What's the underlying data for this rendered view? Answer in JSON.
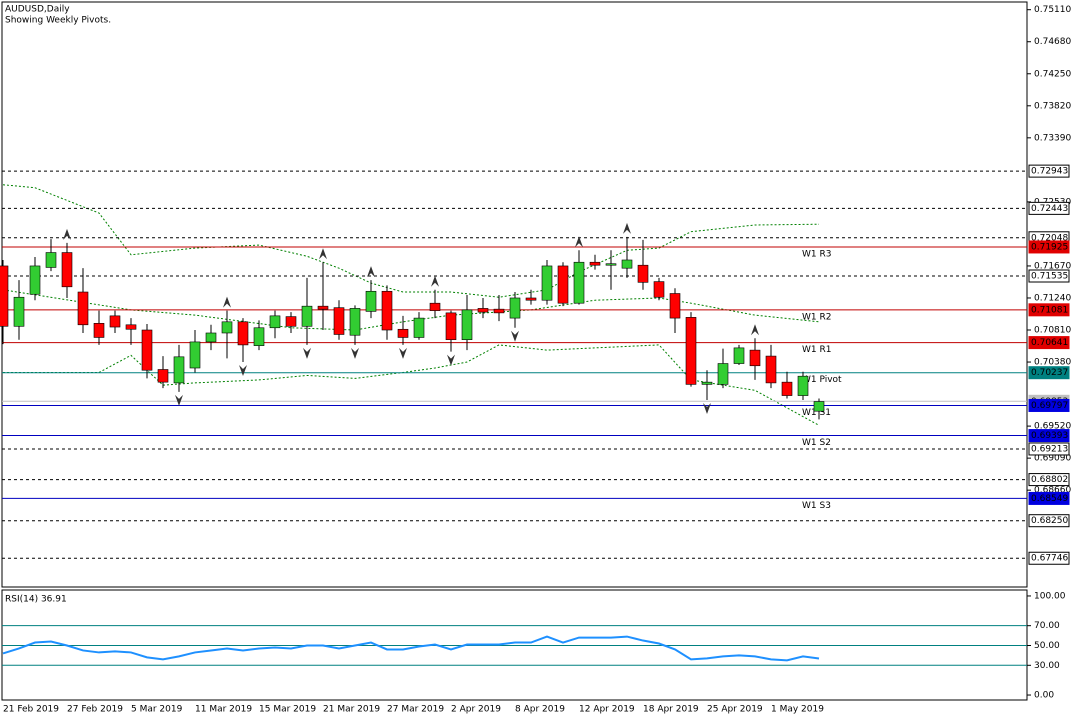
{
  "header": {
    "symbol": "AUDUSD,Daily",
    "note": "Showing Weekly Pivots."
  },
  "chart_data": [
    {
      "type": "candlestick",
      "categories": [
        "21 Feb 2019",
        null,
        null,
        null,
        "27 Feb 2019",
        null,
        null,
        null,
        "5 Mar 2019",
        null,
        null,
        null,
        "11 Mar 2019",
        null,
        null,
        null,
        "15 Mar 2019",
        null,
        null,
        null,
        "21 Mar 2019",
        null,
        null,
        null,
        "27 Mar 2019",
        null,
        null,
        null,
        "2 Apr 2019",
        null,
        null,
        null,
        "8 Apr 2019",
        null,
        null,
        null,
        "12 Apr 2019",
        null,
        null,
        null,
        "18 Apr 2019",
        null,
        null,
        null,
        "25 Apr 2019",
        null,
        null,
        null,
        "1 May 2019",
        null,
        null,
        null
      ],
      "open": [
        0.7167,
        0.7086,
        0.7129,
        0.7165,
        0.7185,
        0.7132,
        0.709,
        0.71,
        0.7088,
        0.7081,
        0.7028,
        0.701,
        0.703,
        0.7065,
        0.7077,
        0.7092,
        0.706,
        0.7084,
        0.7099,
        0.7086,
        0.7113,
        0.7111,
        0.7074,
        0.7106,
        0.7133,
        0.7082,
        0.7071,
        0.7117,
        0.7104,
        0.7068,
        0.711,
        0.7109,
        0.7097,
        0.7124,
        0.7121,
        0.7167,
        0.7117,
        0.7172,
        0.7168,
        0.7164,
        0.7168,
        0.7146,
        0.713,
        0.7098,
        0.7008,
        0.7008,
        0.7036,
        0.7054,
        0.7046,
        0.7011,
        0.6993,
        0.6972
      ],
      "high": [
        0.7175,
        0.7148,
        0.7179,
        0.7203,
        0.7198,
        0.7164,
        0.7107,
        0.7107,
        0.7097,
        0.7089,
        0.7046,
        0.7061,
        0.7081,
        0.7088,
        0.7107,
        0.7097,
        0.7094,
        0.7107,
        0.7105,
        0.7151,
        0.7172,
        0.7121,
        0.7114,
        0.7148,
        0.7141,
        0.71,
        0.7105,
        0.7135,
        0.7107,
        0.7128,
        0.7124,
        0.7128,
        0.7132,
        0.7135,
        0.7175,
        0.7172,
        0.7188,
        0.7182,
        0.7188,
        0.7206,
        0.7202,
        0.7151,
        0.7137,
        0.7105,
        0.7027,
        0.7056,
        0.7061,
        0.707,
        0.7061,
        0.7025,
        0.7025,
        0.6989
      ],
      "low": [
        0.7062,
        0.7068,
        0.7121,
        0.716,
        0.7124,
        0.7077,
        0.7061,
        0.7077,
        0.7061,
        0.7016,
        0.7003,
        0.6998,
        0.7024,
        0.7054,
        0.7043,
        0.7038,
        0.7054,
        0.707,
        0.7077,
        0.7061,
        0.7081,
        0.7068,
        0.7061,
        0.7097,
        0.7068,
        0.7061,
        0.7068,
        0.7097,
        0.7052,
        0.7054,
        0.7097,
        0.7093,
        0.7084,
        0.7115,
        0.7115,
        0.7113,
        0.7115,
        0.7162,
        0.7135,
        0.7151,
        0.7135,
        0.7121,
        0.7077,
        0.7005,
        0.6987,
        0.7003,
        0.7034,
        0.7014,
        0.7003,
        0.6989,
        0.6987,
        0.6961
      ],
      "close": [
        0.7086,
        0.7125,
        0.7167,
        0.7185,
        0.7139,
        0.7088,
        0.7071,
        0.7085,
        0.7082,
        0.7027,
        0.7011,
        0.7045,
        0.7065,
        0.7077,
        0.7092,
        0.7061,
        0.7084,
        0.71,
        0.7086,
        0.7113,
        0.7109,
        0.7075,
        0.711,
        0.7133,
        0.7081,
        0.7071,
        0.7097,
        0.7107,
        0.7068,
        0.7108,
        0.7105,
        0.7104,
        0.7124,
        0.7121,
        0.7167,
        0.7117,
        0.7172,
        0.7168,
        0.717,
        0.7175,
        0.7145,
        0.7125,
        0.7097,
        0.7008,
        0.7011,
        0.7036,
        0.7057,
        0.7033,
        0.701,
        0.6993,
        0.7019,
        0.6985
      ],
      "up_color": "#32cd32",
      "down_color": "#ff0000",
      "ylim": [
        0.6736,
        0.752
      ],
      "yticks": [
        {
          "value": 0.7511,
          "label": "0.75110"
        },
        {
          "value": 0.7468,
          "label": "0.74680"
        },
        {
          "value": 0.7425,
          "label": "0.74250"
        },
        {
          "value": 0.7382,
          "label": "0.73820"
        },
        {
          "value": 0.7339,
          "label": "0.73390"
        },
        {
          "value": 0.7253,
          "label": "0.72530"
        },
        {
          "value": 0.7167,
          "label": "0.71670"
        },
        {
          "value": 0.7124,
          "label": "0.71240"
        },
        {
          "value": 0.7081,
          "label": "0.70810"
        },
        {
          "value": 0.7038,
          "label": "0.70380"
        },
        {
          "value": 0.6952,
          "label": "0.69520"
        },
        {
          "value": 0.6909,
          "label": "0.69090"
        },
        {
          "value": 0.6866,
          "label": "0.68660"
        }
      ],
      "levels": [
        {
          "value": 0.72943,
          "label": "0.72943",
          "color": "#000000",
          "dashed": true,
          "label_bg": "#ffffff",
          "label_color": "#000000"
        },
        {
          "value": 0.72443,
          "label": "0.72443",
          "color": "#000000",
          "dashed": true,
          "label_bg": "#ffffff",
          "label_color": "#000000"
        },
        {
          "value": 0.72048,
          "label": "0.72048",
          "color": "#000000",
          "dashed": true,
          "label_bg": "#ffffff",
          "label_color": "#000000"
        },
        {
          "value": 0.71925,
          "label": "0.71925",
          "name": "W1 R3",
          "color": "#c00000",
          "dashed": false,
          "label_bg": "#e00000",
          "label_color": "#ffffff"
        },
        {
          "value": 0.71535,
          "label": "0.71535",
          "color": "#000000",
          "dashed": true,
          "label_bg": "#ffffff",
          "label_color": "#000000"
        },
        {
          "value": 0.71081,
          "label": "0.71081",
          "name": "W1 R2",
          "color": "#c00000",
          "dashed": false,
          "label_bg": "#e00000",
          "label_color": "#ffffff"
        },
        {
          "value": 0.70641,
          "label": "0.70641",
          "name": "W1 R1",
          "color": "#c00000",
          "dashed": false,
          "label_bg": "#e00000",
          "label_color": "#ffffff"
        },
        {
          "value": 0.70237,
          "label": "0.70237",
          "name": "W1 Pivot",
          "color": "#008080",
          "dashed": false,
          "label_bg": "#008080",
          "label_color": "#ffffff"
        },
        {
          "value": 0.69853,
          "label": "0.69853",
          "color": "#c0c0c0",
          "dashed": false,
          "label_bg": "#c0c0c0",
          "label_color": "#ffffff"
        },
        {
          "value": 0.69797,
          "label": "0.69797",
          "name": "W1 S1",
          "color": "#0000c0",
          "dashed": false,
          "label_bg": "#0000e0",
          "label_color": "#ffffff"
        },
        {
          "value": 0.69393,
          "label": "0.69393",
          "name": "W1 S2",
          "color": "#0000c0",
          "dashed": false,
          "label_bg": "#0000e0",
          "label_color": "#ffffff"
        },
        {
          "value": 0.69213,
          "label": "0.69213",
          "color": "#000000",
          "dashed": true,
          "label_bg": "#ffffff",
          "label_color": "#000000"
        },
        {
          "value": 0.68802,
          "label": "0.68802",
          "color": "#000000",
          "dashed": true,
          "label_bg": "#ffffff",
          "label_color": "#000000"
        },
        {
          "value": 0.68549,
          "label": "0.68549",
          "name": "W1 S3",
          "color": "#0000c0",
          "dashed": false,
          "label_bg": "#0000e0",
          "label_color": "#ffffff"
        },
        {
          "value": 0.6825,
          "label": "0.68250",
          "color": "#000000",
          "dashed": true,
          "label_bg": "#ffffff",
          "label_color": "#000000"
        },
        {
          "value": 0.67746,
          "label": "0.67746",
          "color": "#000000",
          "dashed": true,
          "label_bg": "#ffffff",
          "label_color": "#000000"
        }
      ],
      "bands": [
        {
          "color": "#008000",
          "x": [
            0,
            2,
            6,
            8,
            12,
            16,
            19,
            21,
            23,
            25,
            28,
            31,
            34,
            36,
            39,
            41,
            43,
            47,
            51
          ],
          "values": [
            0.7276,
            0.7272,
            0.7238,
            0.7182,
            0.7191,
            0.7195,
            0.718,
            0.7164,
            0.7144,
            0.7132,
            0.7132,
            0.7125,
            0.7135,
            0.7159,
            0.7188,
            0.7191,
            0.7213,
            0.7222,
            0.7223
          ]
        },
        {
          "color": "#008000",
          "x": [
            0,
            8,
            12,
            18,
            22,
            25,
            28,
            33,
            37,
            41,
            43,
            47,
            51
          ],
          "values": [
            0.7135,
            0.7108,
            0.7101,
            0.7084,
            0.7081,
            0.7092,
            0.7101,
            0.7108,
            0.7121,
            0.7124,
            0.7117,
            0.7101,
            0.7092
          ]
        },
        {
          "color": "#008000",
          "x": [
            0,
            6,
            8,
            10,
            12,
            16,
            19,
            22,
            25,
            27,
            29,
            31,
            34,
            37,
            41,
            43,
            47,
            51
          ],
          "values": [
            0.7024,
            0.7024,
            0.7047,
            0.7007,
            0.701,
            0.7014,
            0.702,
            0.7016,
            0.7024,
            0.703,
            0.7038,
            0.7061,
            0.7054,
            0.7057,
            0.7061,
            0.7014,
            0.7,
            0.6953
          ]
        }
      ],
      "fractals_up": [
        4,
        14,
        20,
        23,
        27,
        36,
        39,
        47
      ],
      "fractals_down": [
        11,
        15,
        19,
        22,
        25,
        28,
        32,
        44
      ]
    },
    {
      "type": "line",
      "title": "RSI(14) 36.91",
      "color": "#1e90ff",
      "values": [
        42,
        47,
        53,
        54,
        50,
        45,
        43,
        44,
        43,
        38,
        36,
        39,
        43,
        45,
        47,
        45,
        47,
        48,
        47,
        50,
        50,
        47,
        50,
        53,
        46,
        46,
        49,
        51,
        46,
        51,
        51,
        51,
        53,
        53,
        59,
        53,
        58,
        58,
        58,
        59,
        55,
        52,
        46,
        36,
        37,
        39,
        40,
        39,
        36,
        35,
        39,
        36.91
      ],
      "ylim": [
        -3,
        104
      ],
      "yticks": [
        {
          "value": 100,
          "label": "100.00"
        },
        {
          "value": 70,
          "label": "70.00"
        },
        {
          "value": 50,
          "label": "50.00"
        },
        {
          "value": 30,
          "label": "30.00"
        },
        {
          "value": 0,
          "label": "0.00"
        }
      ],
      "grid_color": "#008080"
    }
  ]
}
